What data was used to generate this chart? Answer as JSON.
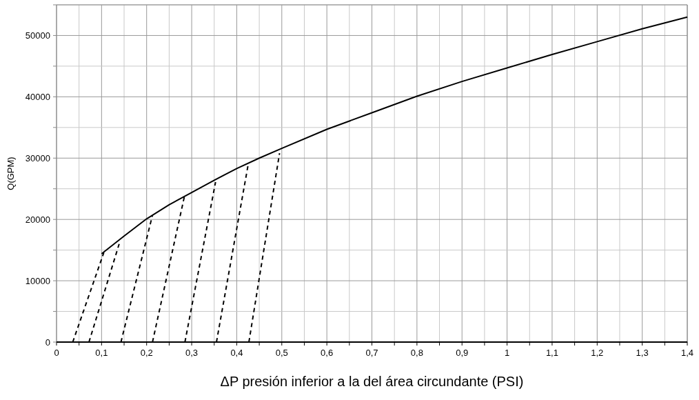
{
  "chart_data": {
    "type": "line",
    "xlabel": "ΔP presión inferior a la del área circundante (PSI)",
    "ylabel": "Q(GPM)",
    "xlim": [
      0,
      1.4
    ],
    "ylim": [
      0,
      55000
    ],
    "xticks": [
      0,
      {
        "value": 0.05,
        "label": null
      },
      {
        "value": 0.1,
        "label": "0,1"
      },
      {
        "value": 0.15,
        "label": null
      },
      {
        "value": 0.2,
        "label": "0,2"
      },
      {
        "value": 0.25,
        "label": null
      },
      {
        "value": 0.3,
        "label": "0,3"
      },
      {
        "value": 0.35,
        "label": null
      },
      {
        "value": 0.4,
        "label": "0,4"
      },
      {
        "value": 0.45,
        "label": null
      },
      {
        "value": 0.5,
        "label": "0,5"
      },
      {
        "value": 0.55,
        "label": null
      },
      {
        "value": 0.6,
        "label": "0,6"
      },
      {
        "value": 0.65,
        "label": null
      },
      {
        "value": 0.7,
        "label": "0,7"
      },
      {
        "value": 0.75,
        "label": null
      },
      {
        "value": 0.8,
        "label": "0,8"
      },
      {
        "value": 0.85,
        "label": null
      },
      {
        "value": 0.9,
        "label": "0,9"
      },
      {
        "value": 0.95,
        "label": null
      },
      1,
      {
        "value": 1.05,
        "label": null
      },
      {
        "value": 1.1,
        "label": "1,1"
      },
      {
        "value": 1.15,
        "label": null
      },
      {
        "value": 1.2,
        "label": "1,2"
      },
      {
        "value": 1.25,
        "label": null
      },
      {
        "value": 1.3,
        "label": "1,3"
      },
      {
        "value": 1.35,
        "label": null
      },
      {
        "value": 1.4,
        "label": "1,4"
      }
    ],
    "yticks": [
      0,
      {
        "value": 5000,
        "label": null
      },
      10000,
      {
        "value": 15000,
        "label": null
      },
      20000,
      {
        "value": 25000,
        "label": null
      },
      30000,
      {
        "value": 35000,
        "label": null
      },
      40000,
      {
        "value": 45000,
        "label": null
      },
      50000,
      {
        "value": 55000,
        "label": null
      }
    ],
    "grid": true,
    "marker": "none",
    "series": [
      {
        "color": "#000000",
        "line_style": "solid",
        "x": [
          0.1,
          0.15,
          0.2,
          0.25,
          0.3,
          0.35,
          0.4,
          0.45,
          0.5,
          0.6,
          0.7,
          0.8,
          0.9,
          1.0,
          1.1,
          1.2,
          1.3,
          1.4
        ],
        "values": [
          14400,
          17300,
          20100,
          22400,
          24400,
          26400,
          28300,
          30000,
          31600,
          34700,
          37400,
          40100,
          42500,
          44700,
          46900,
          49000,
          51100,
          53000
        ]
      },
      {
        "color": "#000000",
        "line_style": "dashed",
        "x": [
          0.036,
          0.105
        ],
        "values": [
          0,
          14600
        ]
      },
      {
        "color": "#000000",
        "line_style": "dashed",
        "x": [
          0.072,
          0.139
        ],
        "values": [
          0,
          16000
        ]
      },
      {
        "color": "#000000",
        "line_style": "dashed",
        "x": [
          0.143,
          0.213
        ],
        "values": [
          0,
          20700
        ]
      },
      {
        "color": "#000000",
        "line_style": "dashed",
        "x": [
          0.213,
          0.284
        ],
        "values": [
          0,
          23800
        ]
      },
      {
        "color": "#000000",
        "line_style": "dashed",
        "x": [
          0.285,
          0.353
        ],
        "values": [
          0,
          26100
        ]
      },
      {
        "color": "#000000",
        "line_style": "dashed",
        "x": [
          0.355,
          0.426
        ],
        "values": [
          0,
          29200
        ]
      },
      {
        "color": "#000000",
        "line_style": "dashed",
        "x": [
          0.427,
          0.495
        ],
        "values": [
          0,
          30800
        ]
      }
    ]
  }
}
